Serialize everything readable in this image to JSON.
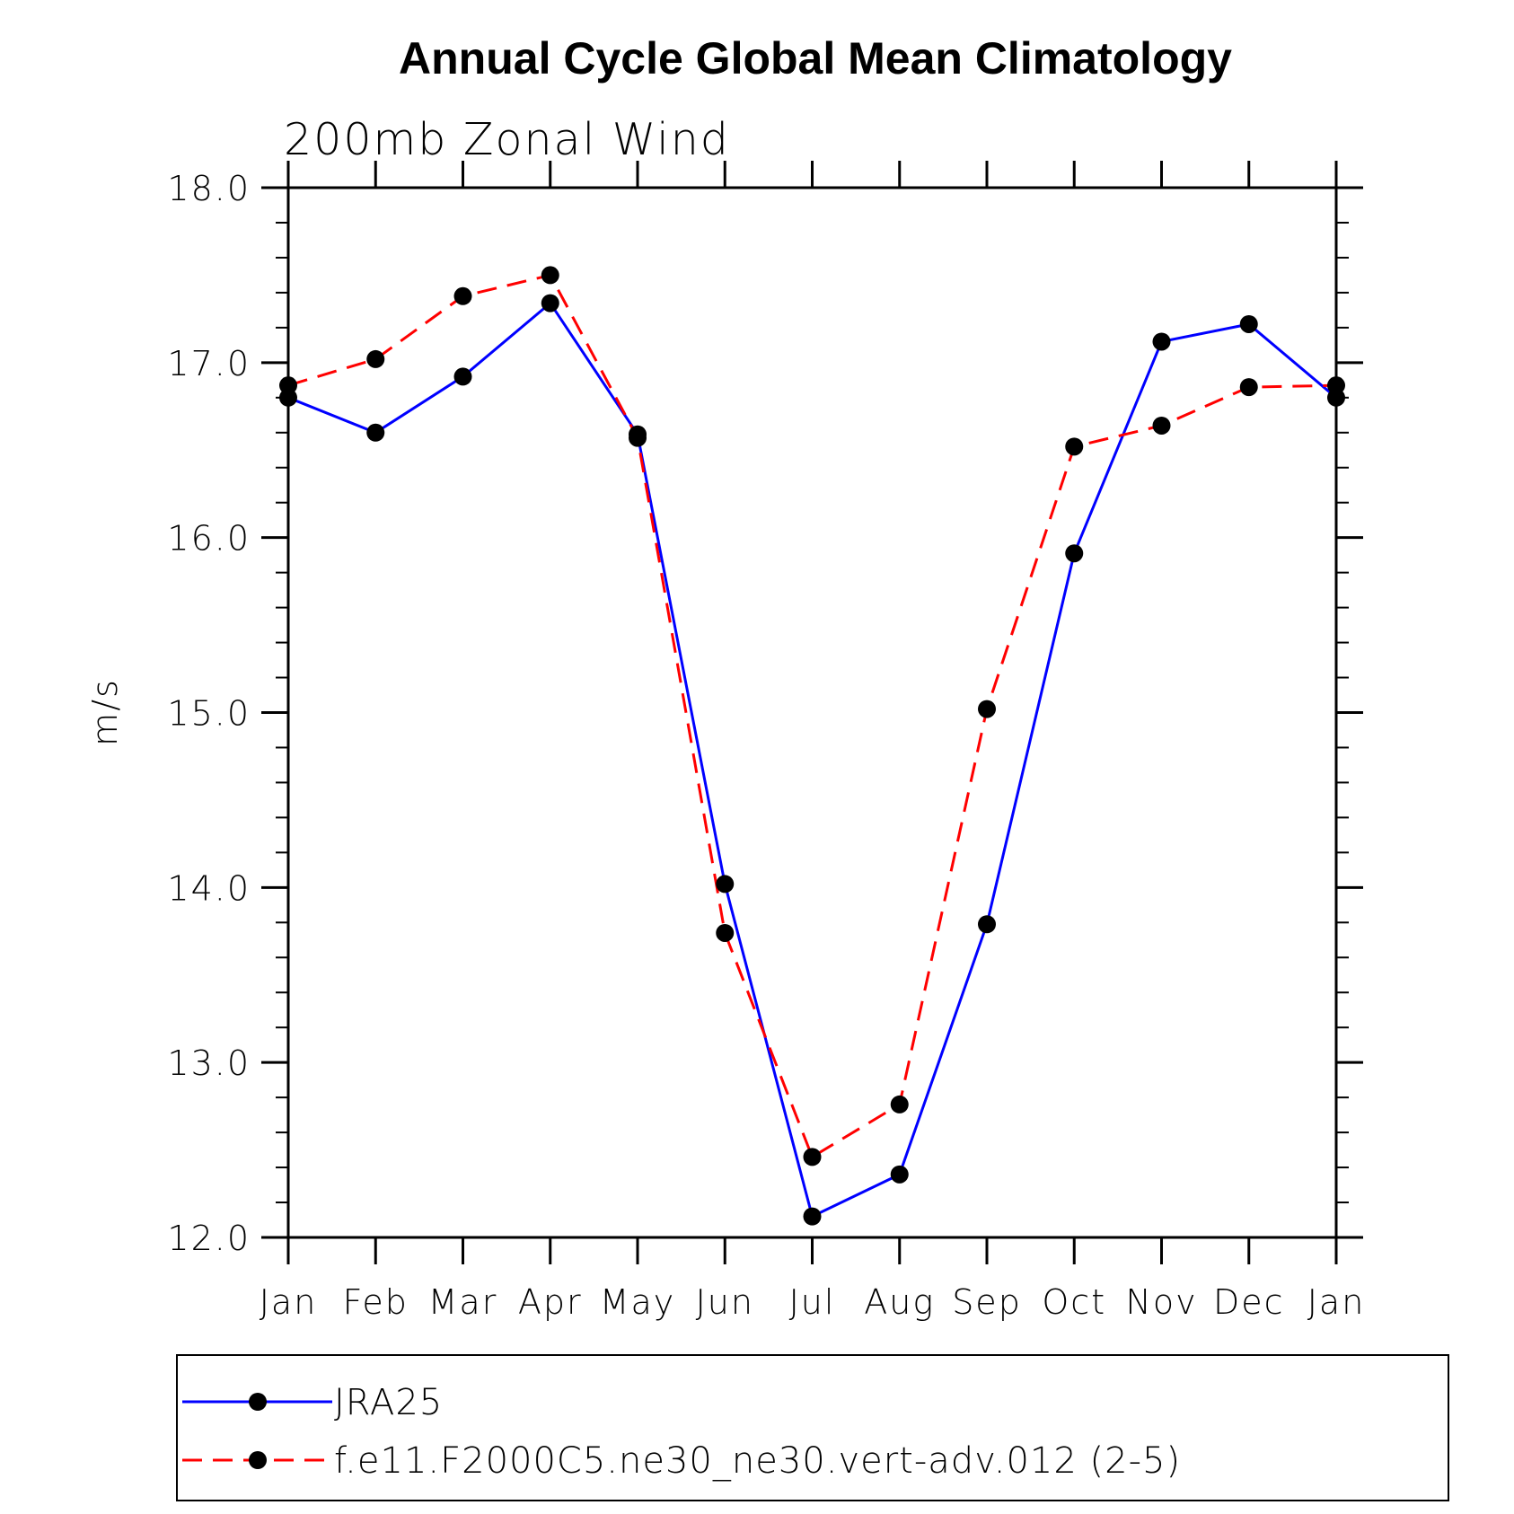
{
  "chart_data": {
    "type": "line",
    "title": "Annual Cycle Global Mean Climatology",
    "subtitle": "200mb Zonal Wind",
    "ylabel": "m/s",
    "xlabel": "",
    "categories": [
      "Jan",
      "Feb",
      "Mar",
      "Apr",
      "May",
      "Jun",
      "Jul",
      "Aug",
      "Sep",
      "Oct",
      "Nov",
      "Dec",
      "Jan"
    ],
    "ylim": [
      12.0,
      18.0
    ],
    "y_ticks": [
      "12.0",
      "13.0",
      "14.0",
      "15.0",
      "16.0",
      "17.0",
      "18.0"
    ],
    "grid": false,
    "legend_placement": "bottom",
    "series": [
      {
        "name": "JRA25",
        "color": "#0000ff",
        "dash": "solid",
        "values": [
          16.8,
          16.6,
          16.92,
          17.34,
          16.59,
          14.02,
          12.12,
          12.36,
          13.79,
          15.91,
          17.12,
          17.22,
          16.8
        ]
      },
      {
        "name": "f.e11.F2000C5.ne30_ne30.vert-adv.012 (2-5)",
        "color": "#ff0000",
        "dash": "dashed",
        "values": [
          16.87,
          17.02,
          17.38,
          17.5,
          16.57,
          13.74,
          12.46,
          12.76,
          15.02,
          16.52,
          16.64,
          16.86,
          16.87
        ]
      }
    ]
  }
}
